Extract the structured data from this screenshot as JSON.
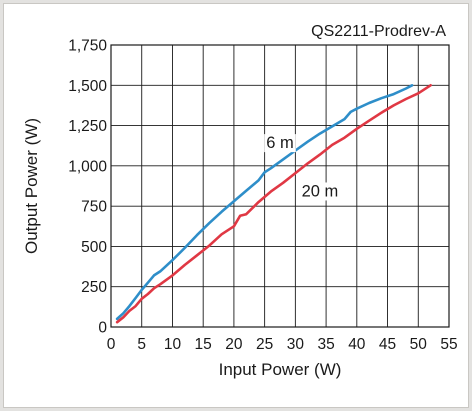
{
  "chart_data": {
    "type": "line",
    "title": "",
    "annotation": "QS2211-Prodrev-A",
    "xlabel": "Input Power (W)",
    "ylabel": "Output Power (W)",
    "xlim": [
      0,
      55
    ],
    "ylim": [
      0,
      1750
    ],
    "x_ticks": [
      0,
      5,
      10,
      15,
      20,
      25,
      30,
      35,
      40,
      45,
      50,
      55
    ],
    "x_tick_labels": [
      "0",
      "5",
      "10",
      "15",
      "20",
      "25",
      "30",
      "35",
      "40",
      "45",
      "50",
      "55"
    ],
    "y_ticks": [
      0,
      250,
      500,
      750,
      1000,
      1250,
      1500,
      1750
    ],
    "y_tick_labels": [
      "0",
      "250",
      "500",
      "750",
      "1,000",
      "1,250",
      "1,500",
      "1,750"
    ],
    "grid": true,
    "series": [
      {
        "name": "6 m",
        "color": "#2e8ec9",
        "x": [
          1,
          2,
          3,
          4,
          5,
          6,
          7,
          8,
          9,
          10,
          12,
          14,
          16,
          18,
          20,
          22,
          24,
          25,
          26,
          28,
          30,
          32,
          34,
          36,
          38,
          39,
          40,
          42,
          44,
          46,
          48,
          49
        ],
        "y": [
          50,
          85,
          130,
          180,
          230,
          275,
          320,
          345,
          380,
          415,
          490,
          570,
          645,
          715,
          780,
          845,
          910,
          960,
          985,
          1040,
          1095,
          1150,
          1200,
          1245,
          1290,
          1335,
          1355,
          1390,
          1420,
          1445,
          1480,
          1500
        ]
      },
      {
        "name": "20 m",
        "color": "#e03844",
        "x": [
          1,
          2,
          3,
          4,
          5,
          6,
          7,
          8,
          10,
          12,
          14,
          16,
          18,
          20,
          21,
          22,
          24,
          26,
          28,
          30,
          32,
          34,
          36,
          38,
          40,
          42,
          44,
          46,
          48,
          50,
          52
        ],
        "y": [
          30,
          60,
          100,
          130,
          175,
          205,
          240,
          265,
          320,
          385,
          445,
          505,
          575,
          625,
          690,
          700,
          775,
          840,
          895,
          955,
          1015,
          1070,
          1130,
          1175,
          1230,
          1280,
          1330,
          1375,
          1415,
          1450,
          1500
        ]
      }
    ],
    "series_label_positions": [
      {
        "text": "6 m",
        "x": 27.5,
        "y": 1110
      },
      {
        "text": "20 m",
        "x": 34,
        "y": 810
      }
    ]
  }
}
